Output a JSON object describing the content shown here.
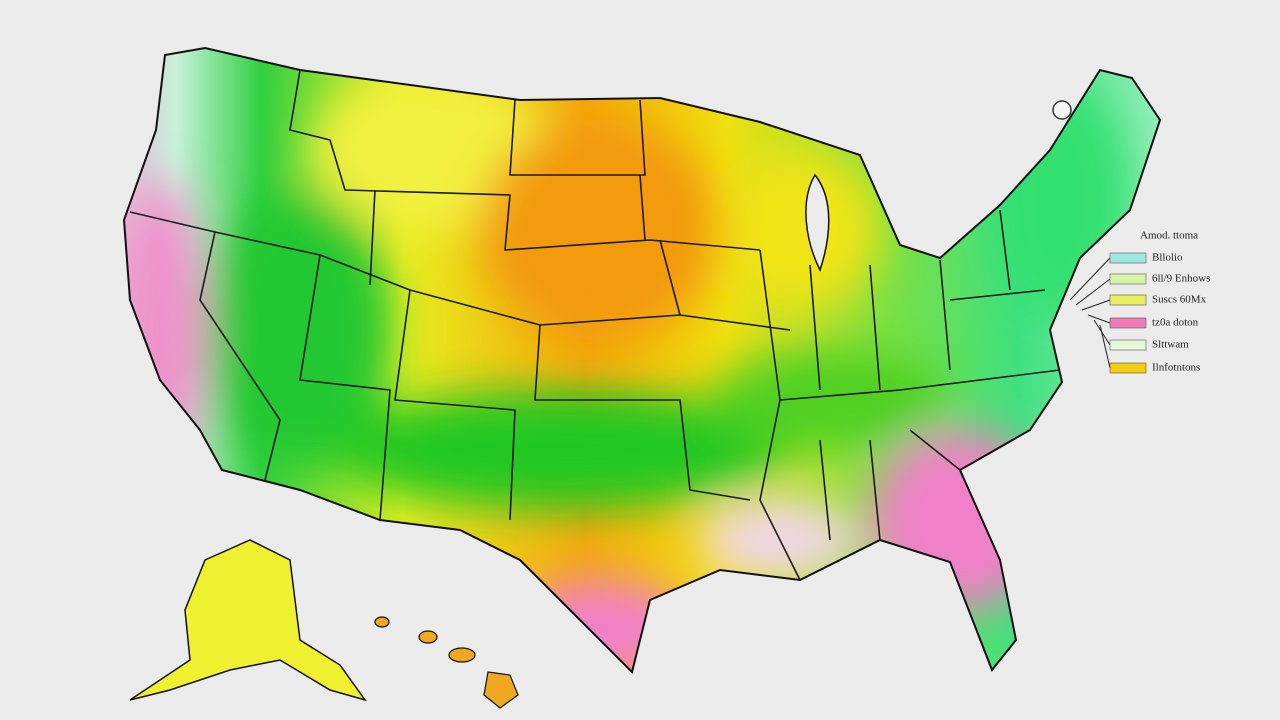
{
  "legend": {
    "title": "Amod. ttoma",
    "items": [
      {
        "label": "Bllolio",
        "color": "#9ee8e0"
      },
      {
        "label": "6ll/9 Enhows",
        "color": "#d6f5a8"
      },
      {
        "label": "Suscs 60Mx",
        "color": "#e8f060"
      },
      {
        "label": "tz0a doton",
        "color": "#f07ab8"
      },
      {
        "label": "Slttwam",
        "color": "#e6f7d8"
      },
      {
        "label": "Ilnfotntons",
        "color": "#f2cc10"
      }
    ]
  }
}
